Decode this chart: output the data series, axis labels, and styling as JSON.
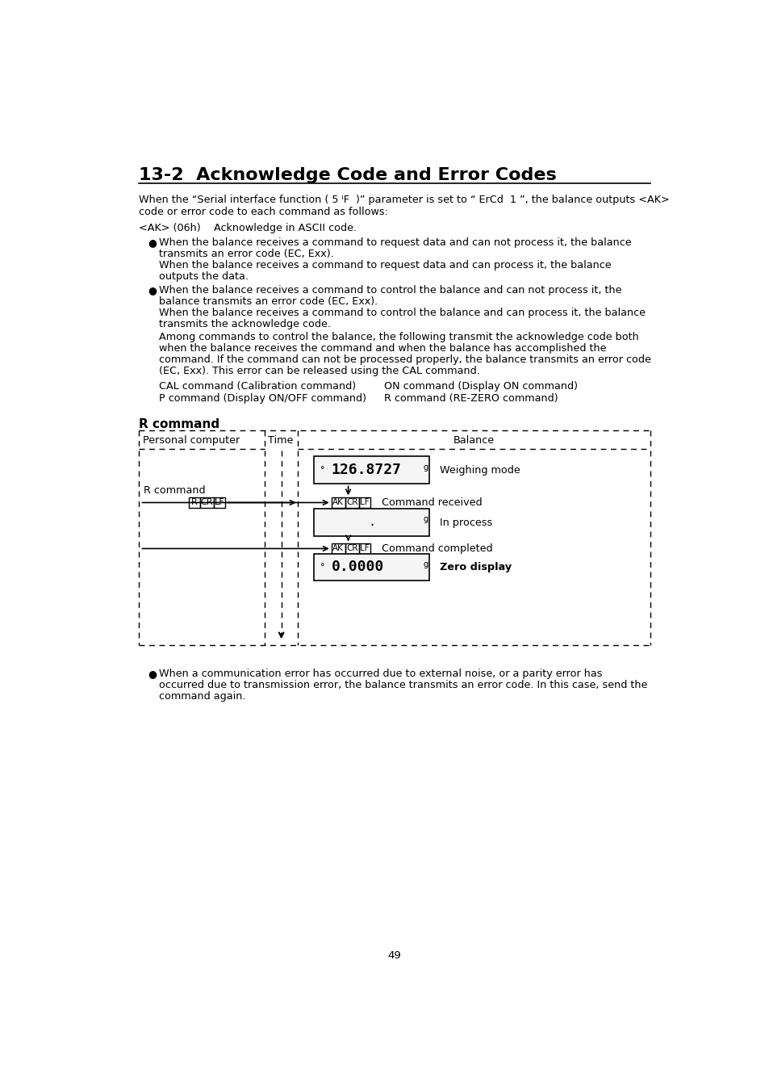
{
  "title": "13-2  Acknowledge Code and Error Codes",
  "page_number": "49",
  "bg_color": "#ffffff",
  "text_color": "#000000",
  "para1": "When the “Serial interface function ( 5 ᴵF  )” parameter is set to “ ErCd  1 ”, the balance outputs <AK>",
  "para1b": "code or error code to each command as follows:",
  "ak_line1": "<AK> (06h)",
  "ak_line2": "Acknowledge in ASCII code.",
  "bullet1_line1": "When the balance receives a command to request data and can not process it, the balance",
  "bullet1_line2": "transmits an error code (EC, Exx).",
  "bullet1_line3": "When the balance receives a command to request data and can process it, the balance",
  "bullet1_line4": "outputs the data.",
  "bullet2_line1": "When the balance receives a command to control the balance and can not process it, the",
  "bullet2_line2": "balance transmits an error code (EC, Exx).",
  "bullet2_line3": "When the balance receives a command to control the balance and can process it, the balance",
  "bullet2_line4": "transmits the acknowledge code.",
  "para2_line1": "Among commands to control the balance, the following transmit the acknowledge code both",
  "para2_line2": "when the balance receives the command and when the balance has accomplished the",
  "para2_line3": "command. If the command can not be processed properly, the balance transmits an error code",
  "para2_line4": "(EC, Exx). This error can be released using the CAL command.",
  "cmd1_left": "CAL command (Calibration command)",
  "cmd1_right": "ON command (Display ON command)",
  "cmd2_left": "P command (Display ON/OFF command)",
  "cmd2_right": "R command (RE-ZERO command)",
  "diagram_title": "R command",
  "diag_col1": "Personal computer",
  "diag_col2": "Time",
  "diag_col3": "Balance",
  "diag_label_rcmd": "R command",
  "diag_display1": "126.8727",
  "diag_display1_unit": "g",
  "diag_display1_dot": "°",
  "diag_label1": "Weighing mode",
  "diag_label2": "Command received",
  "diag_label2b": "In process",
  "diag_display2_unit": "g",
  "diag_label3": "Command completed",
  "diag_display3_unit": "g",
  "diag_display3_dot": "°",
  "diag_label3b": "Zero display",
  "bullet3_line1": "When a communication error has occurred due to external noise, or a parity error has",
  "bullet3_line2": "occurred due to transmission error, the balance transmits an error code. In this case, send the",
  "bullet3_line3": "command again."
}
